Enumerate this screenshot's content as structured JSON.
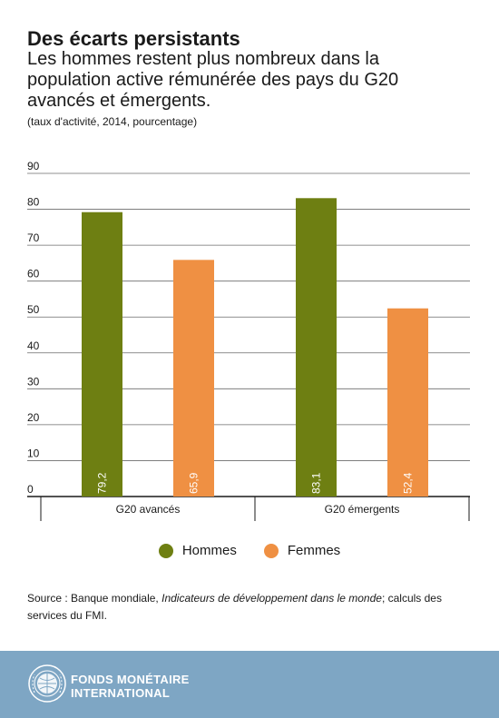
{
  "header": {
    "title": "Des écarts persistants",
    "subtitle": "Les hommes restent plus nombreux dans la population active rémunérée des pays du G20 avancés et émergents.",
    "note": "(taux d'activité, 2014, pourcentage)"
  },
  "colors": {
    "hommes": "#6e7f12",
    "femmes": "#ef9043",
    "footer": "#7ea6c4"
  },
  "chart_data": {
    "type": "bar",
    "categories": [
      "G20 avancés",
      "G20 émergents"
    ],
    "series": [
      {
        "name": "Hommes",
        "values": [
          79.2,
          83.1
        ],
        "labels": [
          "79,2",
          "83,1"
        ]
      },
      {
        "name": "Femmes",
        "values": [
          65.9,
          52.4
        ],
        "labels": [
          "65,9",
          "52,4"
        ]
      }
    ],
    "ylim": [
      0,
      90
    ],
    "yticks": [
      "0",
      "10",
      "20",
      "30",
      "40",
      "50",
      "60",
      "70",
      "80",
      "90"
    ],
    "grid": true,
    "legend": "bottom"
  },
  "legend": {
    "hommes": "Hommes",
    "femmes": "Femmes"
  },
  "source": {
    "prefix": "Source : Banque mondiale, ",
    "italic": "Indicateurs de développement dans le monde",
    "suffix": "; calculs des services du FMI."
  },
  "footer": {
    "org_line1": "FONDS MONÉTAIRE",
    "org_line2": "INTERNATIONAL"
  }
}
